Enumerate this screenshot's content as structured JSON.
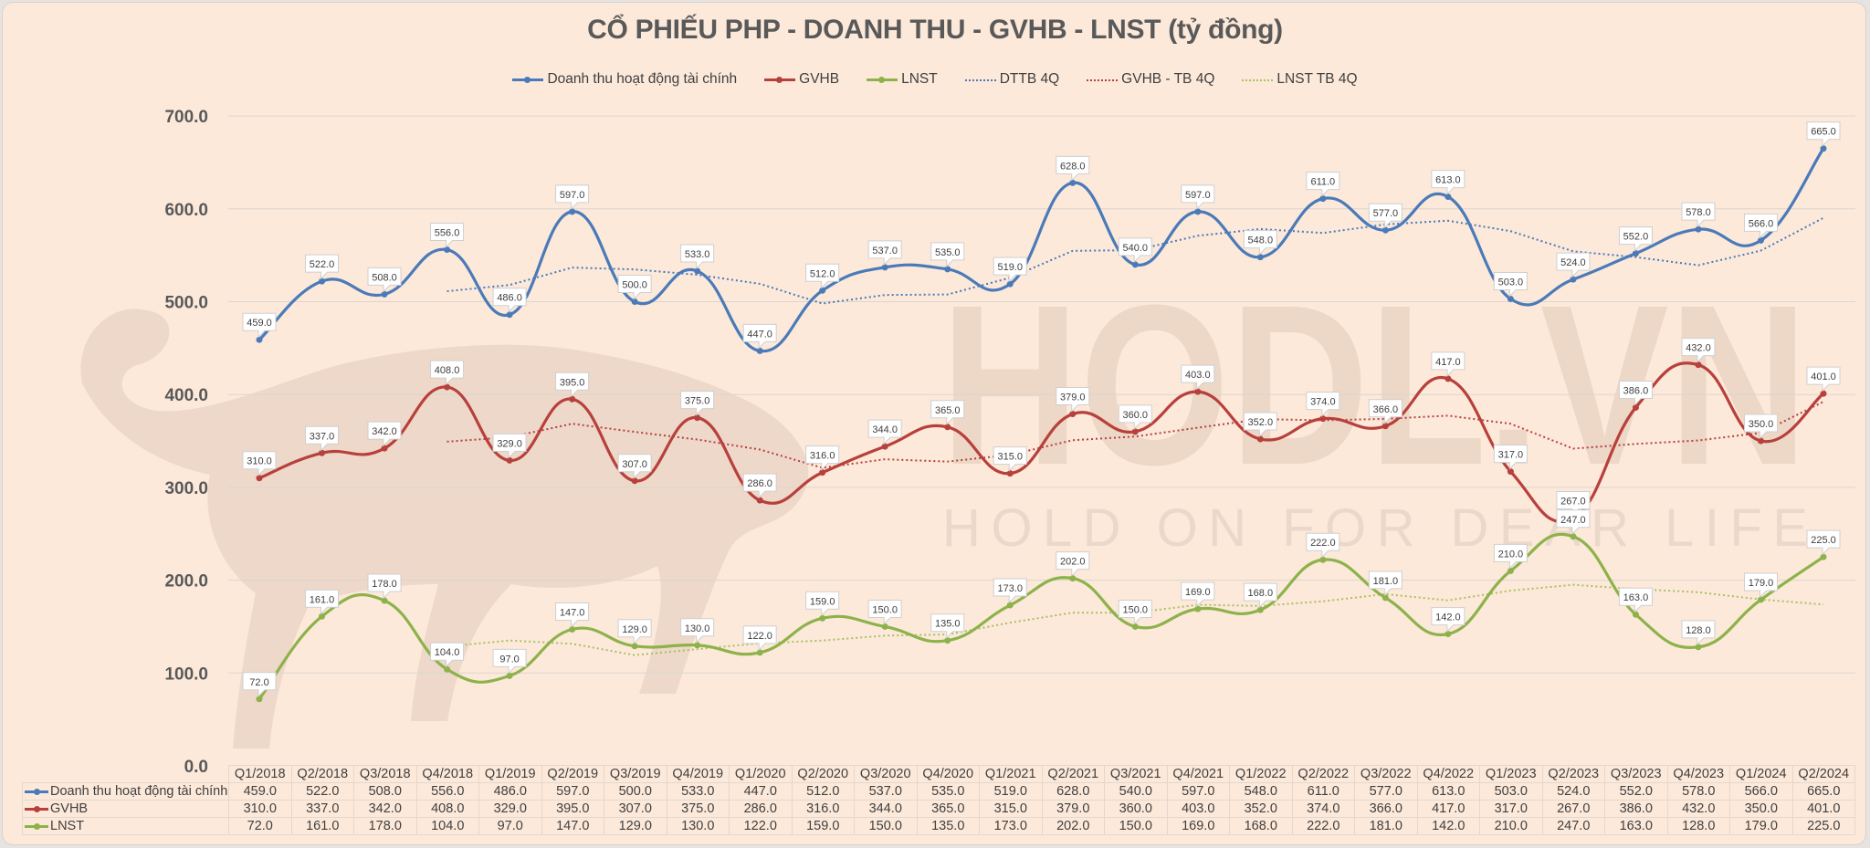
{
  "title": "CỔ PHIẾU PHP - DOANH THU - GVHB - LNST (tỷ đồng)",
  "legend": [
    {
      "label": "Doanh thu hoạt động tài chính",
      "style": "solid",
      "color": "#4a7ab8"
    },
    {
      "label": "GVHB",
      "style": "solid",
      "color": "#b8403c"
    },
    {
      "label": "LNST",
      "style": "solid",
      "color": "#8db24a"
    },
    {
      "label": "DTTB 4Q",
      "style": "dotted",
      "color": "#4a7ab8"
    },
    {
      "label": "GVHB - TB 4Q",
      "style": "dotted",
      "color": "#b8403c"
    },
    {
      "label": "LNST TB 4Q",
      "style": "dotted",
      "color": "#a8c060"
    }
  ],
  "watermark": {
    "brand": "HODL.VN",
    "slogan": "HOLD ON FOR DEAR LIFE"
  },
  "chart_data": {
    "type": "line",
    "title": "CỔ PHIẾU PHP - DOANH THU - GVHB - LNST (tỷ đồng)",
    "xlabel": "",
    "ylabel": "",
    "ylim": [
      0,
      700
    ],
    "yticks": [
      "0.0",
      "100.0",
      "200.0",
      "300.0",
      "400.0",
      "500.0",
      "600.0",
      "700.0"
    ],
    "grid": true,
    "legend_position": "top",
    "categories": [
      "Q1/2018",
      "Q2/2018",
      "Q3/2018",
      "Q4/2018",
      "Q1/2019",
      "Q2/2019",
      "Q3/2019",
      "Q4/2019",
      "Q1/2020",
      "Q2/2020",
      "Q3/2020",
      "Q4/2020",
      "Q1/2021",
      "Q2/2021",
      "Q3/2021",
      "Q4/2021",
      "Q1/2022",
      "Q2/2022",
      "Q3/2022",
      "Q4/2022",
      "Q1/2023",
      "Q2/2023",
      "Q3/2023",
      "Q4/2023",
      "Q1/2024",
      "Q2/2024"
    ],
    "series": [
      {
        "name": "Doanh thu hoạt động tài chính",
        "color": "#4a7ab8",
        "style": "solid",
        "values": [
          459.0,
          522.0,
          508.0,
          556.0,
          486.0,
          597.0,
          500.0,
          533.0,
          447.0,
          512.0,
          537.0,
          535.0,
          519.0,
          628.0,
          540.0,
          597.0,
          548.0,
          611.0,
          577.0,
          613.0,
          503.0,
          524.0,
          552.0,
          578.0,
          566.0,
          665.0
        ]
      },
      {
        "name": "GVHB",
        "color": "#b8403c",
        "style": "solid",
        "values": [
          310.0,
          337.0,
          342.0,
          408.0,
          329.0,
          395.0,
          307.0,
          375.0,
          286.0,
          316.0,
          344.0,
          365.0,
          315.0,
          379.0,
          360.0,
          403.0,
          352.0,
          374.0,
          366.0,
          417.0,
          317.0,
          267.0,
          386.0,
          432.0,
          350.0,
          401.0
        ]
      },
      {
        "name": "LNST",
        "color": "#8db24a",
        "style": "solid",
        "values": [
          72.0,
          161.0,
          178.0,
          104.0,
          97.0,
          147.0,
          129.0,
          130.0,
          122.0,
          159.0,
          150.0,
          135.0,
          173.0,
          202.0,
          150.0,
          169.0,
          168.0,
          222.0,
          181.0,
          142.0,
          210.0,
          247.0,
          163.0,
          128.0,
          179.0,
          225.0
        ]
      },
      {
        "name": "DTTB 4Q",
        "color": "#4a7ab8",
        "style": "dotted",
        "moving_average_of": "Doanh thu hoạt động tài chính",
        "window": 4
      },
      {
        "name": "GVHB - TB 4Q",
        "color": "#b8403c",
        "style": "dotted",
        "moving_average_of": "GVHB",
        "window": 4
      },
      {
        "name": "LNST TB 4Q",
        "color": "#a8c060",
        "style": "dotted",
        "moving_average_of": "LNST",
        "window": 4
      }
    ]
  }
}
